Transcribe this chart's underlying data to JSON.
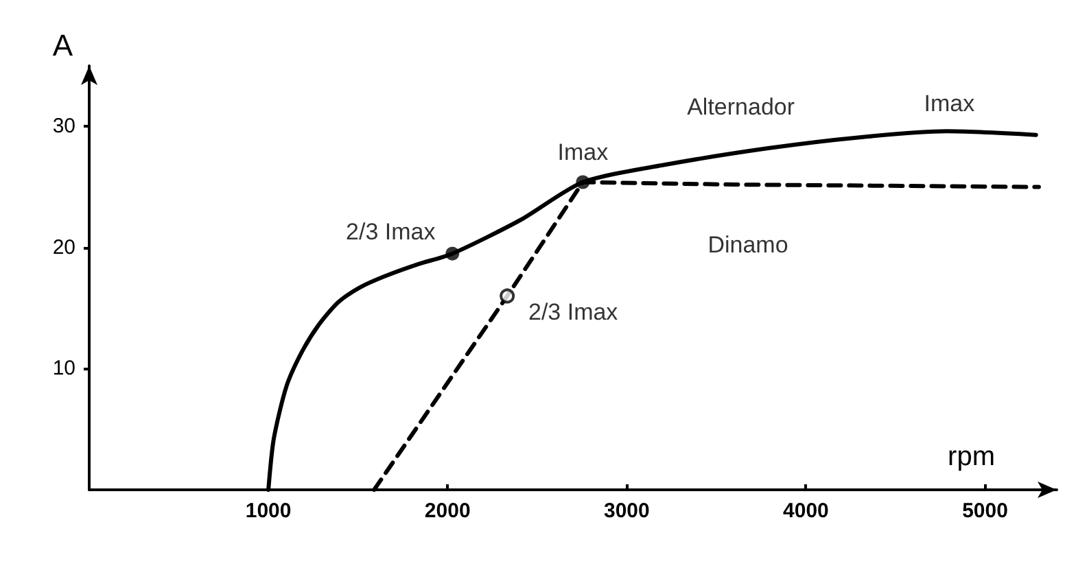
{
  "chart_data": {
    "type": "line",
    "xlabel": "rpm",
    "ylabel": "A",
    "xlim": [
      0,
      5400
    ],
    "ylim": [
      0,
      35
    ],
    "xticks": [
      1000,
      2000,
      3000,
      4000,
      5000
    ],
    "yticks": [
      10,
      20,
      30
    ],
    "grid": false,
    "legend": false,
    "series": [
      {
        "name": "Alternador",
        "color": "#000000",
        "line_style": "solid",
        "x": [
          1000,
          1030,
          1100,
          1184,
          1280,
          1391,
          1510,
          1644,
          1830,
          2027,
          2410,
          2755,
          3200,
          3790,
          4300,
          4785,
          5284
        ],
        "values": [
          0,
          4.2,
          8.5,
          11.3,
          13.6,
          15.5,
          16.7,
          17.6,
          18.6,
          19.5,
          22.3,
          25.4,
          26.8,
          28.2,
          29.1,
          29.6,
          29.3
        ]
      },
      {
        "name": "Dinamo",
        "color": "#000000",
        "line_style": "dashed",
        "x": [
          1590,
          2333,
          2755,
          3600,
          5300
        ],
        "values": [
          0,
          16,
          25.4,
          25.2,
          25
        ]
      }
    ],
    "annotations": [
      {
        "text": "2/3 Imax",
        "x": 2027,
        "y": 19.5
      },
      {
        "text": "Imax",
        "x": 2755,
        "y": 25.4
      },
      {
        "text": "2/3 Imax",
        "x": 2333,
        "y": 16
      },
      {
        "text": "Imax",
        "x": 4800,
        "y": 29.6
      }
    ]
  }
}
